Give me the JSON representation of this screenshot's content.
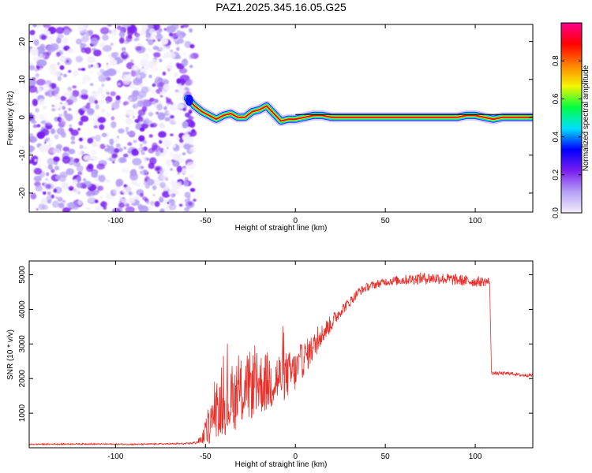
{
  "figure": {
    "title": "PAZ1.2025.345.16.05.G25"
  },
  "chart_data": [
    {
      "type": "heatmap",
      "xlabel": "Height of straight line (km)",
      "ylabel": "Frequency (Hz)",
      "xlim": [
        -148,
        132
      ],
      "ylim": [
        -25,
        24.5
      ],
      "xticks": [
        -100,
        -50,
        0,
        50,
        100
      ],
      "xtick_labels": [
        "-100",
        "-50",
        "0",
        "50",
        "100"
      ],
      "yticks": [
        20,
        10,
        0,
        -10,
        -20
      ],
      "ytick_labels": [
        "20",
        "10",
        "0",
        "-10",
        "-20"
      ],
      "noise_region_x": [
        -148,
        -56
      ],
      "signal_region_x": [
        -60,
        132
      ],
      "ridge": {
        "x": [
          -60,
          -56,
          -52,
          -48,
          -44,
          -40,
          -36,
          -32,
          -28,
          -24,
          -20,
          -16,
          -12,
          -8,
          -4,
          0,
          5,
          10,
          15,
          20,
          25,
          30,
          35,
          40,
          60,
          80,
          90,
          95,
          100,
          105,
          110,
          115,
          132
        ],
        "y": [
          5,
          3,
          1.5,
          0.5,
          -0.5,
          0.5,
          1,
          0,
          0,
          1.5,
          2,
          3,
          1,
          -1,
          -0.5,
          -0.5,
          0,
          0.5,
          0.5,
          0,
          0,
          0,
          0,
          0,
          0,
          0,
          0,
          0.5,
          0.5,
          0,
          -0.5,
          0,
          0
        ]
      },
      "colorbar": {
        "label": "Normalized spectral amplitude",
        "range": [
          0,
          1
        ],
        "ticks": [
          0.0,
          0.2,
          0.4,
          0.6,
          0.8
        ],
        "tick_labels": [
          "0.0",
          "0.2",
          "0.4",
          "0.6",
          "0.8"
        ],
        "colors": [
          "#f3eefc",
          "#b49ff5",
          "#7a1cf0",
          "#0000ff",
          "#00e0ff",
          "#00ff40",
          "#f5f500",
          "#ff8000",
          "#ff0000",
          "#ff0090"
        ]
      }
    },
    {
      "type": "line",
      "xlabel": "Height of straight line (km)",
      "ylabel": "SNR (10 * v/v)",
      "xlim": [
        -148,
        132
      ],
      "ylim": [
        0,
        5400
      ],
      "xticks": [
        -100,
        -50,
        0,
        50,
        100
      ],
      "xtick_labels": [
        "-100",
        "-50",
        "0",
        "50",
        "100"
      ],
      "yticks": [
        1000,
        2000,
        3000,
        4000,
        5000
      ],
      "ytick_labels": [
        "1000",
        "2000",
        "3000",
        "4000",
        "5000"
      ],
      "color": "#e8302b",
      "series": [
        {
          "name": "SNR",
          "x": [
            -148,
            -120,
            -90,
            -60,
            -55,
            -52,
            -48,
            -45,
            -40,
            -35,
            -30,
            -25,
            -20,
            -15,
            -10,
            -5,
            0,
            5,
            10,
            15,
            20,
            25,
            30,
            35,
            40,
            50,
            60,
            70,
            80,
            90,
            100,
            105,
            108,
            109,
            110,
            115,
            120,
            125,
            132
          ],
          "y": [
            100,
            110,
            100,
            120,
            150,
            250,
            600,
            1000,
            1150,
            1350,
            1600,
            1800,
            1850,
            1900,
            2000,
            2100,
            2200,
            2600,
            2900,
            3300,
            3600,
            3950,
            4200,
            4500,
            4650,
            4800,
            4850,
            4900,
            4900,
            4850,
            4800,
            4800,
            4800,
            2200,
            2150,
            2150,
            2150,
            2100,
            2100
          ],
          "jitter": [
            20,
            20,
            20,
            25,
            40,
            150,
            500,
            700,
            800,
            900,
            1000,
            1000,
            900,
            900,
            800,
            700,
            600,
            500,
            400,
            300,
            250,
            180,
            150,
            130,
            120,
            120,
            150,
            170,
            170,
            170,
            150,
            140,
            120,
            50,
            50,
            50,
            50,
            50,
            50
          ]
        }
      ]
    }
  ]
}
